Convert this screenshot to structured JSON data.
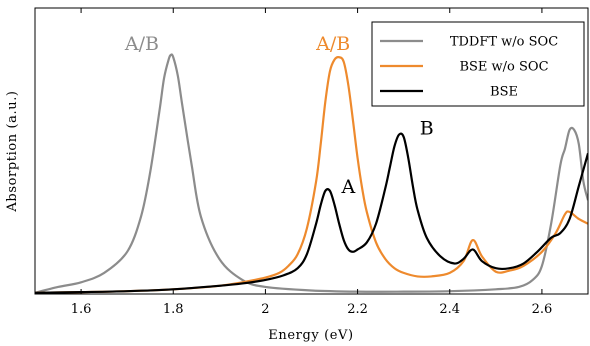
{
  "chart_data": {
    "type": "line",
    "title": "",
    "xlabel": "Energy (eV)",
    "ylabel": "Absorption (a.u.)",
    "xlim": [
      1.5,
      2.7
    ],
    "ylim": [
      0,
      1.22
    ],
    "x_ticks": [
      "1.6",
      "1.8",
      "2",
      "2.2",
      "2.4",
      "2.6"
    ],
    "y_ticks": [],
    "grid": false,
    "legend_position": "top-right",
    "colors": {
      "tddft": "#8c8c8c",
      "bse_nosoc": "#ee8a2d",
      "bse": "#000000",
      "frame": "#000000"
    },
    "series": [
      {
        "name": "TDDFT w/o SOC",
        "color": "#8c8c8c",
        "x": [
          1.5,
          1.55,
          1.6,
          1.65,
          1.7,
          1.73,
          1.75,
          1.77,
          1.78,
          1.79,
          1.795,
          1.8,
          1.81,
          1.82,
          1.84,
          1.86,
          1.9,
          1.95,
          2.0,
          2.1,
          2.2,
          2.3,
          2.4,
          2.5,
          2.55,
          2.58,
          2.6,
          2.62,
          2.64,
          2.65,
          2.66,
          2.67,
          2.68,
          2.69,
          2.7
        ],
        "y": [
          0.005,
          0.03,
          0.05,
          0.09,
          0.18,
          0.33,
          0.52,
          0.78,
          0.92,
          1.0,
          1.02,
          1.01,
          0.93,
          0.8,
          0.55,
          0.33,
          0.15,
          0.06,
          0.03,
          0.015,
          0.01,
          0.01,
          0.012,
          0.02,
          0.03,
          0.06,
          0.12,
          0.3,
          0.55,
          0.62,
          0.7,
          0.7,
          0.64,
          0.48,
          0.4
        ]
      },
      {
        "name": "BSE w/o SOC",
        "color": "#ee8a2d",
        "x": [
          1.5,
          1.6,
          1.7,
          1.8,
          1.9,
          1.95,
          2.0,
          2.03,
          2.05,
          2.07,
          2.09,
          2.11,
          2.12,
          2.13,
          2.14,
          2.15,
          2.16,
          2.17,
          2.18,
          2.19,
          2.2,
          2.21,
          2.22,
          2.24,
          2.26,
          2.28,
          2.3,
          2.33,
          2.36,
          2.4,
          2.43,
          2.45,
          2.47,
          2.5,
          2.53,
          2.56,
          2.6,
          2.63,
          2.65,
          2.66,
          2.68,
          2.7
        ],
        "y": [
          0.005,
          0.008,
          0.012,
          0.02,
          0.035,
          0.05,
          0.07,
          0.09,
          0.12,
          0.17,
          0.28,
          0.48,
          0.64,
          0.82,
          0.95,
          1.0,
          1.01,
          0.99,
          0.89,
          0.74,
          0.58,
          0.45,
          0.35,
          0.22,
          0.15,
          0.11,
          0.09,
          0.075,
          0.075,
          0.09,
          0.14,
          0.23,
          0.16,
          0.095,
          0.1,
          0.12,
          0.18,
          0.26,
          0.34,
          0.35,
          0.32,
          0.3
        ]
      },
      {
        "name": "BSE",
        "color": "#000000",
        "x": [
          1.5,
          1.6,
          1.7,
          1.8,
          1.9,
          1.95,
          2.0,
          2.04,
          2.07,
          2.09,
          2.11,
          2.12,
          2.13,
          2.14,
          2.15,
          2.16,
          2.17,
          2.18,
          2.19,
          2.2,
          2.22,
          2.24,
          2.26,
          2.27,
          2.28,
          2.29,
          2.3,
          2.31,
          2.32,
          2.33,
          2.35,
          2.38,
          2.41,
          2.43,
          2.45,
          2.47,
          2.5,
          2.53,
          2.56,
          2.59,
          2.62,
          2.64,
          2.66,
          2.68,
          2.7
        ],
        "y": [
          0.005,
          0.008,
          0.012,
          0.02,
          0.035,
          0.045,
          0.06,
          0.08,
          0.11,
          0.17,
          0.3,
          0.38,
          0.44,
          0.44,
          0.38,
          0.3,
          0.23,
          0.19,
          0.18,
          0.19,
          0.22,
          0.3,
          0.45,
          0.54,
          0.63,
          0.68,
          0.67,
          0.58,
          0.46,
          0.36,
          0.24,
          0.16,
          0.13,
          0.15,
          0.19,
          0.14,
          0.11,
          0.11,
          0.13,
          0.18,
          0.24,
          0.26,
          0.32,
          0.46,
          0.6
        ]
      }
    ],
    "annotations": [
      {
        "text": "A/B",
        "x": 1.695,
        "y": 1.04,
        "color": "#8c8c8c"
      },
      {
        "text": "A/B",
        "x": 2.11,
        "y": 1.04,
        "color": "#ee8a2d"
      },
      {
        "text": "A",
        "x": 2.165,
        "y": 0.43,
        "color": "#000000"
      },
      {
        "text": "B",
        "x": 2.335,
        "y": 0.68,
        "color": "#000000"
      }
    ]
  }
}
